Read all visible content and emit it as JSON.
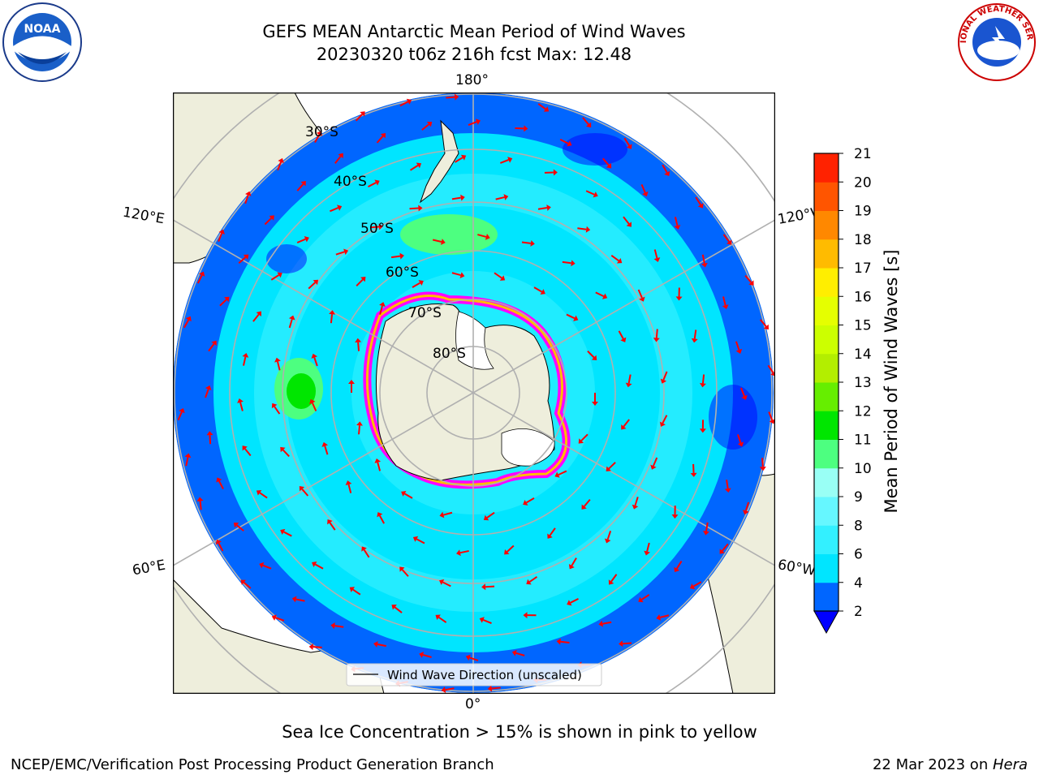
{
  "title": {
    "line1": "GEFS MEAN Antarctic Mean Period of Wind Waves",
    "line2": "20230320 t06z 216h fcst   Max: 12.48"
  },
  "map": {
    "projection": "south polar stereographic",
    "lon_labels": [
      "180°",
      "120°E",
      "120°W",
      "60°E",
      "60°W",
      "0°"
    ],
    "lat_labels": [
      "30°S",
      "40°S",
      "50°S",
      "60°S",
      "70°S",
      "80°S"
    ],
    "legend_label": "Wind Wave Direction (unscaled)",
    "ocean_color": "#00e5ff",
    "land_color": "#eeeedc",
    "arrow_color": "#ff0000"
  },
  "colorbar": {
    "label": "Mean Period of Wind Waves [s]",
    "ticks": [
      "2",
      "4",
      "6",
      "8",
      "9",
      "10",
      "11",
      "12",
      "13",
      "14",
      "15",
      "16",
      "17",
      "18",
      "19",
      "20",
      "21"
    ],
    "colors": [
      "#0066ff",
      "#00e5ff",
      "#33f0ff",
      "#66f7ff",
      "#99fff5",
      "#4dff80",
      "#00e600",
      "#66ee00",
      "#b3ee00",
      "#ccff00",
      "#e5ff00",
      "#ffee00",
      "#ffbb00",
      "#ff8800",
      "#ff5500",
      "#ff2200",
      "#ff0000"
    ],
    "extend_color": "#0000ff"
  },
  "caption": "Sea Ice Concentration > 15% is shown in pink to yellow",
  "footer": {
    "left": "NCEP/EMC/Verification Post Processing Product Generation Branch",
    "right_date": "22 Mar 2023 on ",
    "right_host": "Hera"
  },
  "logos": {
    "noaa_text": "NOAA",
    "nws_text": "NATIONAL WEATHER SERVICE"
  }
}
